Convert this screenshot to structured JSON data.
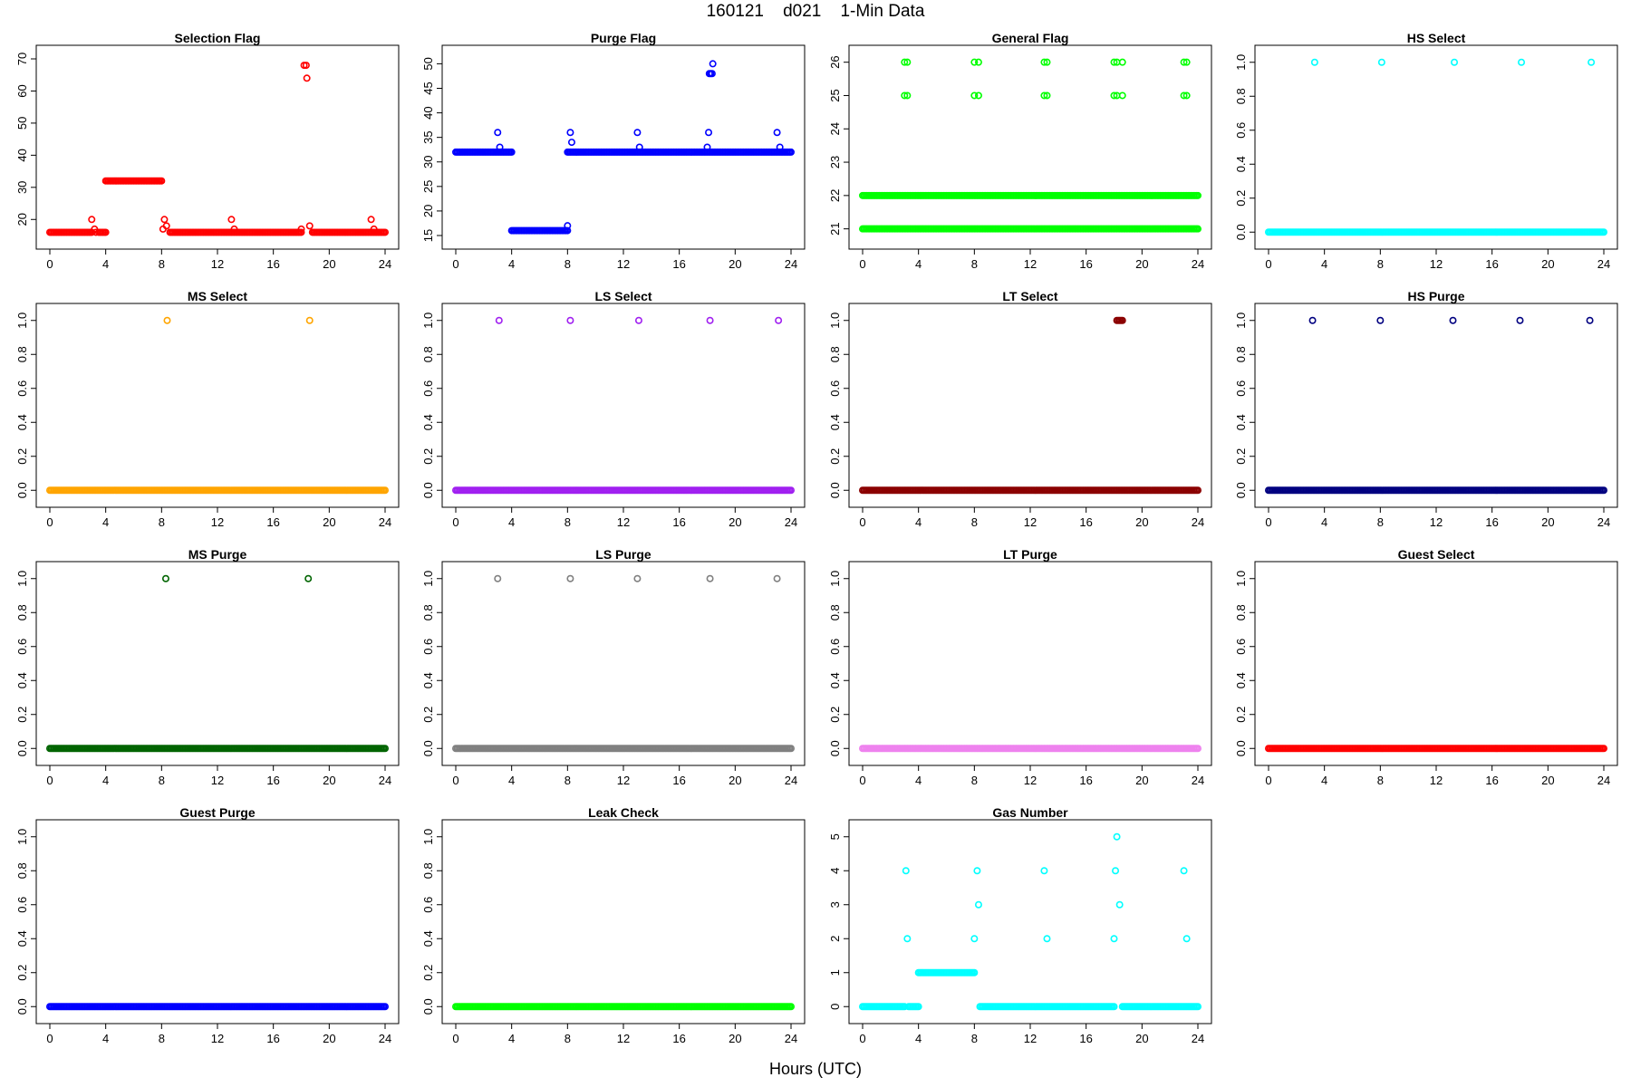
{
  "title": "160121    d021    1-Min Data",
  "xlabel": "Hours (UTC)",
  "chart_data": [
    {
      "type": "scatter",
      "title": "Selection Flag",
      "color": "#ff0000",
      "xlim": [
        0,
        24
      ],
      "ylim": [
        15,
        70
      ],
      "xticks": [
        0,
        4,
        8,
        12,
        16,
        20,
        24
      ],
      "yticks": [
        20,
        30,
        40,
        50,
        60,
        70
      ],
      "runs": [
        [
          0,
          3.0,
          16
        ],
        [
          3.5,
          4.0,
          16
        ],
        [
          4.0,
          8.0,
          32
        ],
        [
          8.6,
          18.0,
          16
        ],
        [
          18.8,
          24,
          16
        ]
      ],
      "points": [
        [
          3.0,
          20
        ],
        [
          3.2,
          17
        ],
        [
          3.3,
          16
        ],
        [
          8.1,
          17
        ],
        [
          8.2,
          20
        ],
        [
          8.35,
          18
        ],
        [
          13.0,
          20
        ],
        [
          13.2,
          17
        ],
        [
          18.0,
          17
        ],
        [
          18.2,
          68
        ],
        [
          18.35,
          68
        ],
        [
          18.4,
          64
        ],
        [
          18.6,
          18
        ],
        [
          23.0,
          20
        ],
        [
          23.2,
          17
        ]
      ]
    },
    {
      "type": "scatter",
      "title": "Purge Flag",
      "color": "#0000ff",
      "xlim": [
        0,
        24
      ],
      "ylim": [
        15,
        51
      ],
      "xticks": [
        0,
        4,
        8,
        12,
        16,
        20,
        24
      ],
      "yticks": [
        15,
        20,
        25,
        30,
        35,
        40,
        45,
        50
      ],
      "runs": [
        [
          0,
          4.0,
          32
        ],
        [
          4.0,
          8.0,
          16
        ],
        [
          8.0,
          24,
          32
        ]
      ],
      "points": [
        [
          3.0,
          36
        ],
        [
          3.15,
          33
        ],
        [
          8.0,
          17
        ],
        [
          8.2,
          36
        ],
        [
          8.3,
          34
        ],
        [
          13.0,
          36
        ],
        [
          13.15,
          33
        ],
        [
          18.0,
          33
        ],
        [
          18.1,
          36
        ],
        [
          18.15,
          48
        ],
        [
          18.25,
          48
        ],
        [
          18.35,
          48
        ],
        [
          18.4,
          50
        ],
        [
          23.0,
          36
        ],
        [
          23.2,
          33
        ]
      ]
    },
    {
      "type": "scatter",
      "title": "General Flag",
      "color": "#00ff00",
      "xlim": [
        0,
        24
      ],
      "ylim": [
        20.8,
        26.1
      ],
      "xticks": [
        0,
        4,
        8,
        12,
        16,
        20,
        24
      ],
      "yticks": [
        21,
        22,
        23,
        24,
        25,
        26
      ],
      "runs": [
        [
          0,
          24,
          21
        ],
        [
          0,
          24,
          22
        ]
      ],
      "points": [
        [
          3.0,
          26
        ],
        [
          3.2,
          26
        ],
        [
          3.0,
          25
        ],
        [
          3.2,
          25
        ],
        [
          8.0,
          26
        ],
        [
          8.3,
          26
        ],
        [
          8.0,
          25
        ],
        [
          8.3,
          25
        ],
        [
          13.0,
          26
        ],
        [
          13.2,
          26
        ],
        [
          13.0,
          25
        ],
        [
          13.2,
          25
        ],
        [
          18.0,
          26
        ],
        [
          18.2,
          26
        ],
        [
          18.6,
          26
        ],
        [
          18.0,
          25
        ],
        [
          18.2,
          25
        ],
        [
          18.6,
          25
        ],
        [
          23.0,
          26
        ],
        [
          23.2,
          26
        ],
        [
          23.0,
          25
        ],
        [
          23.2,
          25
        ]
      ]
    },
    {
      "type": "scatter",
      "title": "HS Select",
      "color": "#00ffff",
      "xlim": [
        0,
        24
      ],
      "ylim": [
        -0.02,
        1.02
      ],
      "xticks": [
        0,
        4,
        8,
        12,
        16,
        20,
        24
      ],
      "yticks": [
        0.0,
        0.2,
        0.4,
        0.6,
        0.8,
        1.0
      ],
      "runs": [
        [
          0,
          24,
          0
        ]
      ],
      "points": [
        [
          3.3,
          1
        ],
        [
          8.1,
          1
        ],
        [
          13.3,
          1
        ],
        [
          18.1,
          1
        ],
        [
          23.1,
          1
        ]
      ]
    },
    {
      "type": "scatter",
      "title": "MS Select",
      "color": "#ffa500",
      "xlim": [
        0,
        24
      ],
      "ylim": [
        -0.02,
        1.02
      ],
      "xticks": [
        0,
        4,
        8,
        12,
        16,
        20,
        24
      ],
      "yticks": [
        0.0,
        0.2,
        0.4,
        0.6,
        0.8,
        1.0
      ],
      "runs": [
        [
          0,
          24,
          0
        ]
      ],
      "points": [
        [
          8.4,
          1
        ],
        [
          18.6,
          1
        ]
      ]
    },
    {
      "type": "scatter",
      "title": "LS Select",
      "color": "#a020f0",
      "xlim": [
        0,
        24
      ],
      "ylim": [
        -0.02,
        1.02
      ],
      "xticks": [
        0,
        4,
        8,
        12,
        16,
        20,
        24
      ],
      "yticks": [
        0.0,
        0.2,
        0.4,
        0.6,
        0.8,
        1.0
      ],
      "runs": [
        [
          0,
          24,
          0
        ]
      ],
      "points": [
        [
          3.1,
          1
        ],
        [
          8.2,
          1
        ],
        [
          13.1,
          1
        ],
        [
          18.2,
          1
        ],
        [
          23.1,
          1
        ]
      ]
    },
    {
      "type": "scatter",
      "title": "LT Select",
      "color": "#8b0000",
      "xlim": [
        0,
        24
      ],
      "ylim": [
        -0.02,
        1.02
      ],
      "xticks": [
        0,
        4,
        8,
        12,
        16,
        20,
        24
      ],
      "yticks": [
        0.0,
        0.2,
        0.4,
        0.6,
        0.8,
        1.0
      ],
      "runs": [
        [
          0,
          24,
          0
        ],
        [
          18.2,
          18.6,
          1
        ]
      ],
      "points": []
    },
    {
      "type": "scatter",
      "title": "HS Purge",
      "color": "#000080",
      "xlim": [
        0,
        24
      ],
      "ylim": [
        -0.02,
        1.02
      ],
      "xticks": [
        0,
        4,
        8,
        12,
        16,
        20,
        24
      ],
      "yticks": [
        0.0,
        0.2,
        0.4,
        0.6,
        0.8,
        1.0
      ],
      "runs": [
        [
          0,
          24,
          0
        ]
      ],
      "points": [
        [
          3.15,
          1
        ],
        [
          8.0,
          1
        ],
        [
          13.2,
          1
        ],
        [
          18.0,
          1
        ],
        [
          23.0,
          1
        ]
      ]
    },
    {
      "type": "scatter",
      "title": "MS Purge",
      "color": "#006400",
      "xlim": [
        0,
        24
      ],
      "ylim": [
        -0.02,
        1.02
      ],
      "xticks": [
        0,
        4,
        8,
        12,
        16,
        20,
        24
      ],
      "yticks": [
        0.0,
        0.2,
        0.4,
        0.6,
        0.8,
        1.0
      ],
      "runs": [
        [
          0,
          24,
          0
        ]
      ],
      "points": [
        [
          8.3,
          1
        ],
        [
          18.5,
          1
        ]
      ]
    },
    {
      "type": "scatter",
      "title": "LS Purge",
      "color": "#808080",
      "xlim": [
        0,
        24
      ],
      "ylim": [
        -0.02,
        1.02
      ],
      "xticks": [
        0,
        4,
        8,
        12,
        16,
        20,
        24
      ],
      "yticks": [
        0.0,
        0.2,
        0.4,
        0.6,
        0.8,
        1.0
      ],
      "runs": [
        [
          0,
          24,
          0
        ]
      ],
      "points": [
        [
          3.0,
          1
        ],
        [
          8.2,
          1
        ],
        [
          13.0,
          1
        ],
        [
          18.2,
          1
        ],
        [
          23.0,
          1
        ]
      ]
    },
    {
      "type": "scatter",
      "title": "LT Purge",
      "color": "#ee82ee",
      "xlim": [
        0,
        24
      ],
      "ylim": [
        -0.02,
        1.02
      ],
      "xticks": [
        0,
        4,
        8,
        12,
        16,
        20,
        24
      ],
      "yticks": [
        0.0,
        0.2,
        0.4,
        0.6,
        0.8,
        1.0
      ],
      "runs": [
        [
          0,
          24,
          0
        ]
      ],
      "points": []
    },
    {
      "type": "scatter",
      "title": "Guest Select",
      "color": "#ff0000",
      "xlim": [
        0,
        24
      ],
      "ylim": [
        -0.02,
        1.02
      ],
      "xticks": [
        0,
        4,
        8,
        12,
        16,
        20,
        24
      ],
      "yticks": [
        0.0,
        0.2,
        0.4,
        0.6,
        0.8,
        1.0
      ],
      "runs": [
        [
          0,
          24,
          0
        ]
      ],
      "points": []
    },
    {
      "type": "scatter",
      "title": "Guest Purge",
      "color": "#0000ff",
      "xlim": [
        0,
        24
      ],
      "ylim": [
        -0.02,
        1.02
      ],
      "xticks": [
        0,
        4,
        8,
        12,
        16,
        20,
        24
      ],
      "yticks": [
        0.0,
        0.2,
        0.4,
        0.6,
        0.8,
        1.0
      ],
      "runs": [
        [
          0,
          24,
          0
        ]
      ],
      "points": []
    },
    {
      "type": "scatter",
      "title": "Leak Check",
      "color": "#00ff00",
      "xlim": [
        0,
        24
      ],
      "ylim": [
        -0.02,
        1.02
      ],
      "xticks": [
        0,
        4,
        8,
        12,
        16,
        20,
        24
      ],
      "yticks": [
        0.0,
        0.2,
        0.4,
        0.6,
        0.8,
        1.0
      ],
      "runs": [
        [
          0,
          24,
          0
        ]
      ],
      "points": []
    },
    {
      "type": "scatter",
      "title": "Gas Number",
      "color": "#00ffff",
      "xlim": [
        0,
        24
      ],
      "ylim": [
        -0.1,
        5.1
      ],
      "xticks": [
        0,
        4,
        8,
        12,
        16,
        20,
        24
      ],
      "yticks": [
        0,
        1,
        2,
        3,
        4,
        5
      ],
      "runs": [
        [
          0,
          3.0,
          0
        ],
        [
          3.3,
          4.0,
          0
        ],
        [
          4.0,
          8.0,
          1
        ],
        [
          8.4,
          18.0,
          0
        ],
        [
          18.6,
          24,
          0
        ]
      ],
      "points": [
        [
          3.1,
          4
        ],
        [
          3.2,
          2
        ],
        [
          8.0,
          2
        ],
        [
          8.2,
          4
        ],
        [
          8.3,
          3
        ],
        [
          13.0,
          4
        ],
        [
          13.2,
          2
        ],
        [
          18.0,
          2
        ],
        [
          18.1,
          4
        ],
        [
          18.2,
          5
        ],
        [
          18.4,
          3
        ],
        [
          23.0,
          4
        ],
        [
          23.2,
          2
        ]
      ]
    }
  ]
}
